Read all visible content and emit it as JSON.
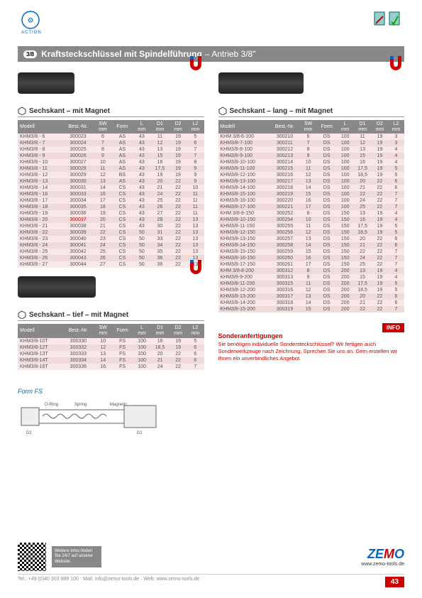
{
  "brand": "ACTION",
  "title": {
    "badge": "3/8",
    "main": "Kraftsteckschlüssel mit Spindelführung",
    "sub": "– Antrieb 3/8\""
  },
  "headers": [
    "Modell",
    "Best.-Nr.",
    "SW mm",
    "Form",
    "L mm",
    "D1 mm",
    "D2 mm",
    "L2 mm"
  ],
  "section1": {
    "title": "Sechskant – mit Magnet"
  },
  "table1": {
    "rows": [
      [
        "KHM3/8 - 6",
        "300023",
        "6",
        "AS",
        "43",
        "11",
        "19",
        "5"
      ],
      [
        "KHM3/8 - 7",
        "300024",
        "7",
        "AS",
        "43",
        "12",
        "19",
        "6"
      ],
      [
        "KHM3/8 - 8",
        "300025",
        "8",
        "AS",
        "43",
        "13",
        "19",
        "7"
      ],
      [
        "KHM3/8 - 9",
        "300026",
        "9",
        "AS",
        "43",
        "15",
        "19",
        "7"
      ],
      [
        "KHM3/8 - 10",
        "300027",
        "10",
        "AS",
        "43",
        "16",
        "19",
        "8"
      ],
      [
        "KHM3/8 - 11",
        "300028",
        "11",
        "AS",
        "43",
        "17,5",
        "19",
        "9"
      ],
      [
        "KHM3/8 - 12",
        "300029",
        "12",
        "BS",
        "43",
        "19",
        "19",
        "9"
      ],
      [
        "KHM3/8 - 13",
        "300030",
        "13",
        "AS",
        "43",
        "20",
        "22",
        "9"
      ],
      [
        "KHM3/8 - 14",
        "300031",
        "14",
        "CS",
        "43",
        "21",
        "22",
        "10"
      ],
      [
        "KHM3/8 - 16",
        "300033",
        "16",
        "CS",
        "43",
        "24",
        "22",
        "11"
      ],
      [
        "KHM3/8 - 17",
        "300034",
        "17",
        "CS",
        "43",
        "25",
        "22",
        "11"
      ],
      [
        "KHM3/8 - 18",
        "300035",
        "18",
        "CS",
        "43",
        "26",
        "22",
        "11"
      ],
      [
        "KHM3/8 - 19",
        "300036",
        "19",
        "CS",
        "43",
        "27",
        "22",
        "11"
      ],
      [
        "KHM3/8 - 20",
        "300037",
        "20",
        "CS",
        "43",
        "28",
        "22",
        "13"
      ],
      [
        "KHM3/8 - 21",
        "300038",
        "21",
        "CS",
        "43",
        "30",
        "22",
        "13"
      ],
      [
        "KHM3/8 - 22",
        "300039",
        "22",
        "CS",
        "50",
        "31",
        "22",
        "13"
      ],
      [
        "KHM3/8 - 23",
        "300040",
        "23",
        "CS",
        "50",
        "33",
        "22",
        "13"
      ],
      [
        "KHM3/8 - 24",
        "300041",
        "24",
        "CS",
        "50",
        "34",
        "22",
        "13"
      ],
      [
        "KHM3/8 - 25",
        "300042",
        "25",
        "CS",
        "50",
        "35",
        "22",
        "13"
      ],
      [
        "KHM3/8 - 26",
        "300043",
        "26",
        "CS",
        "50",
        "36",
        "22",
        "13"
      ],
      [
        "KHM3/8 - 27",
        "300044",
        "27",
        "CS",
        "50",
        "36",
        "22",
        "13"
      ]
    ],
    "highlightRow": 13
  },
  "section2": {
    "title": "Sechskant – lang – mit Magnet"
  },
  "table2": {
    "rows": [
      [
        "KHM 3/8-6-100",
        "300210",
        "6",
        "DS",
        "100",
        "11",
        "19",
        "3"
      ],
      [
        "KHM3/8-7-100",
        "300211",
        "7",
        "DS",
        "100",
        "12",
        "19",
        "3"
      ],
      [
        "KHM3/8-8-100",
        "300212",
        "8",
        "DS",
        "100",
        "13",
        "19",
        "4"
      ],
      [
        "KHM3/8-9-100",
        "300213",
        "9",
        "DS",
        "100",
        "15",
        "19",
        "4"
      ],
      [
        "KHM3/8-10-100",
        "300214",
        "10",
        "DS",
        "100",
        "16",
        "19",
        "4"
      ],
      [
        "KHM3/8-11-100",
        "300215",
        "11",
        "DS",
        "100",
        "17,5",
        "19",
        "5"
      ],
      [
        "KHM3/8-12-100",
        "300216",
        "12",
        "DS",
        "100",
        "18,5",
        "19",
        "5"
      ],
      [
        "KHM3/8-13-100",
        "300217",
        "13",
        "DS",
        "100",
        "20",
        "22",
        "6"
      ],
      [
        "KHM3/8-14-100",
        "300218",
        "14",
        "DS",
        "100",
        "21",
        "22",
        "6"
      ],
      [
        "KHM3/8-15-100",
        "300219",
        "15",
        "DS",
        "100",
        "22",
        "22",
        "7"
      ],
      [
        "KHM3/8-16-100",
        "300220",
        "16",
        "DS",
        "100",
        "24",
        "22",
        "7"
      ],
      [
        "KHM3/8-17-100",
        "300221",
        "17",
        "DS",
        "100",
        "25",
        "22",
        "7"
      ],
      [
        "KHM 3/8-8-150",
        "300252",
        "8",
        "DS",
        "150",
        "13",
        "19",
        "4"
      ],
      [
        "KHM3/8-10-150",
        "300254",
        "10",
        "DS",
        "150",
        "16",
        "19",
        "4"
      ],
      [
        "KHM3/8-11-150",
        "300255",
        "11",
        "DS",
        "150",
        "17,5",
        "19",
        "5"
      ],
      [
        "KHM3/8-12-150",
        "300256",
        "12",
        "DS",
        "150",
        "18,5",
        "19",
        "5"
      ],
      [
        "KHM3/8-13-150",
        "300257",
        "13",
        "DS",
        "150",
        "20",
        "22",
        "6"
      ],
      [
        "KHM3/8-14-150",
        "300258",
        "14",
        "DS",
        "150",
        "21",
        "22",
        "6"
      ],
      [
        "KHM3/8-15-150",
        "300259",
        "15",
        "DS",
        "150",
        "22",
        "22",
        "7"
      ],
      [
        "KHM3/8-16-150",
        "300260",
        "16",
        "DS",
        "150",
        "24",
        "22",
        "7"
      ],
      [
        "KHM3/8-17-150",
        "300261",
        "17",
        "DS",
        "150",
        "25",
        "22",
        "7"
      ],
      [
        "KHM 3/8-8-200",
        "300312",
        "8",
        "DS",
        "200",
        "13",
        "19",
        "4"
      ],
      [
        "KHM3/8-9-200",
        "300313",
        "9",
        "DS",
        "200",
        "15",
        "19",
        "4"
      ],
      [
        "KHM3/8-11-200",
        "300315",
        "11",
        "DS",
        "200",
        "17,5",
        "19",
        "5"
      ],
      [
        "KHM3/8-12-200",
        "300316",
        "12",
        "DS",
        "200",
        "18,5",
        "19",
        "5"
      ],
      [
        "KHM3/8-13-200",
        "300317",
        "13",
        "DS",
        "200",
        "20",
        "22",
        "6"
      ],
      [
        "KHM3/8-14-200",
        "300318",
        "14",
        "DS",
        "200",
        "21",
        "22",
        "6"
      ],
      [
        "KHM3/8-15-200",
        "300319",
        "15",
        "DS",
        "200",
        "22",
        "22",
        "7"
      ]
    ]
  },
  "section3": {
    "title": "Sechskant – tief – mit Magnet"
  },
  "table3": {
    "rows": [
      [
        "KHM3/8-10T",
        "300330",
        "10",
        "FS",
        "100",
        "16",
        "19",
        "5"
      ],
      [
        "KHM3/8-12T",
        "300332",
        "12",
        "FS",
        "100",
        "18,5",
        "19",
        "6"
      ],
      [
        "KHM3/8-13T",
        "300333",
        "13",
        "FS",
        "100",
        "20",
        "22",
        "6"
      ],
      [
        "KHM3/8-14T",
        "300334",
        "14",
        "FS",
        "100",
        "21",
        "22",
        "6"
      ],
      [
        "KHM3/8-16T",
        "300336",
        "16",
        "FS",
        "100",
        "24",
        "22",
        "7"
      ]
    ]
  },
  "info": {
    "badge": "INFO",
    "title": "Sonderanfertigungen",
    "text": "Sie benötigen individuelle Sondersteckschlüssel? Wir fertigen auch Sonderwerkzeuge nach Zeichnung. Sprechen Sie uns an. Gern erstellen wir Ihnen ein unverbindliches Angebot."
  },
  "formLabel": "Form FS",
  "footer": {
    "qrText": "Weitere Infos finden Sie 24/7 auf unserer Website.",
    "zemoUrl": "www.zemo-tools.de",
    "contact": "Tel.: +49 (0)40 303 989 100  ·  Mail: info@zemo-tools.de  ·  Web: www.zemo-tools.de",
    "pageNum": "43"
  }
}
